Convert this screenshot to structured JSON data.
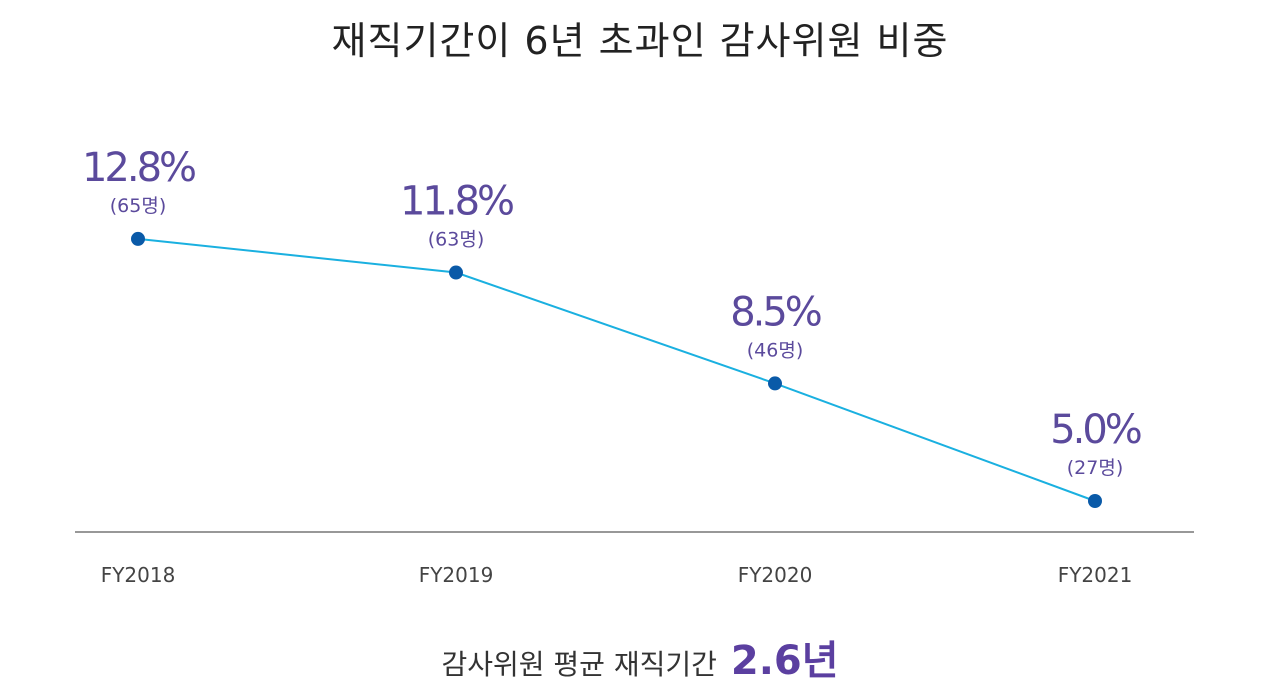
{
  "chart_data": {
    "type": "line",
    "title": "재직기간이 6년 초과인 감사위원 비중",
    "categories": [
      "FY2018",
      "FY2019",
      "FY2020",
      "FY2021"
    ],
    "series": [
      {
        "values": [
          12.8,
          11.8,
          8.5,
          5.0
        ],
        "value_labels": [
          "12.8%",
          "11.8%",
          "8.5%",
          "5.0%"
        ],
        "count_labels": [
          "(65명)",
          "(63명)",
          "(46명)",
          "(27명)"
        ]
      }
    ],
    "line_color": "#1ab0e0",
    "marker_color": "#0a5aa8",
    "label_color": "#5b4a9c",
    "grid": false
  },
  "footer": {
    "label": "감사위원 평균 재직기간",
    "value": "2.6년"
  }
}
